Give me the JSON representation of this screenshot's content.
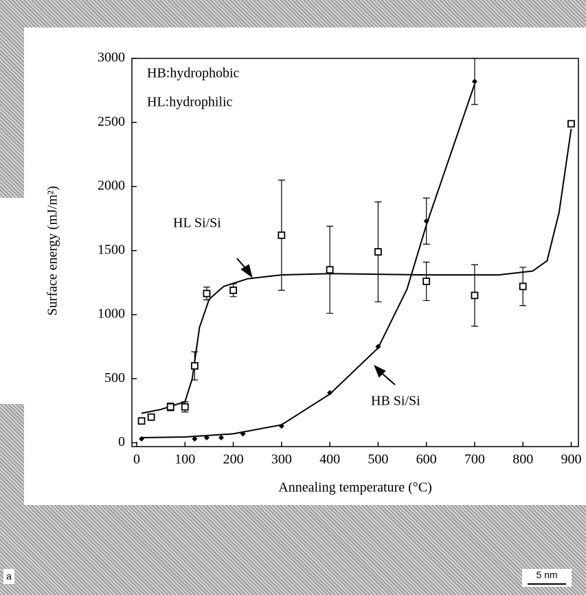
{
  "chart_data": {
    "type": "scatter",
    "xlabel": "Annealing temperature (°C)",
    "ylabel": "Surface energy  (mJ/m²)",
    "xlim": [
      -10,
      915
    ],
    "ylim": [
      -30,
      3000
    ],
    "xticks": [
      0,
      100,
      200,
      300,
      400,
      500,
      600,
      700,
      800,
      900
    ],
    "yticks": [
      0,
      500,
      1000,
      1500,
      2000,
      2500,
      3000
    ],
    "annotations": [
      "HB:hydrophobic",
      "HL:hydrophilic",
      "HL Si/Si",
      "HB Si/Si"
    ],
    "panel_label": "a",
    "scale_bar": "5 nm",
    "series": [
      {
        "marker": "square",
        "color": "#000000",
        "x": [
          10,
          30,
          70,
          100,
          120,
          145,
          200,
          300,
          400,
          500,
          600,
          700,
          800,
          900
        ],
        "values": [
          170,
          200,
          280,
          280,
          600,
          1165,
          1190,
          1620,
          1350,
          1490,
          1260,
          1150,
          1220,
          2490
        ],
        "errors": [
          null,
          null,
          30,
          40,
          110,
          50,
          50,
          430,
          340,
          390,
          150,
          240,
          150,
          null
        ],
        "fit_x": [
          10,
          50,
          100,
          115,
          130,
          150,
          180,
          230,
          300,
          400,
          600,
          750,
          820,
          850,
          875,
          900
        ],
        "fit_y": [
          230,
          260,
          320,
          500,
          900,
          1120,
          1220,
          1280,
          1310,
          1320,
          1310,
          1310,
          1340,
          1420,
          1800,
          2450
        ]
      },
      {
        "marker": "diamond",
        "color": "#000000",
        "x": [
          10,
          120,
          145,
          175,
          220,
          300,
          400,
          500,
          600,
          700
        ],
        "values": [
          30,
          30,
          40,
          40,
          70,
          130,
          390,
          750,
          1730,
          2820
        ],
        "errors": [
          null,
          null,
          null,
          null,
          null,
          null,
          null,
          null,
          180,
          180
        ],
        "fit_x": [
          10,
          100,
          200,
          300,
          400,
          500,
          560,
          600,
          650,
          700
        ],
        "fit_y": [
          40,
          45,
          70,
          140,
          380,
          740,
          1200,
          1700,
          2250,
          2800
        ]
      }
    ]
  }
}
